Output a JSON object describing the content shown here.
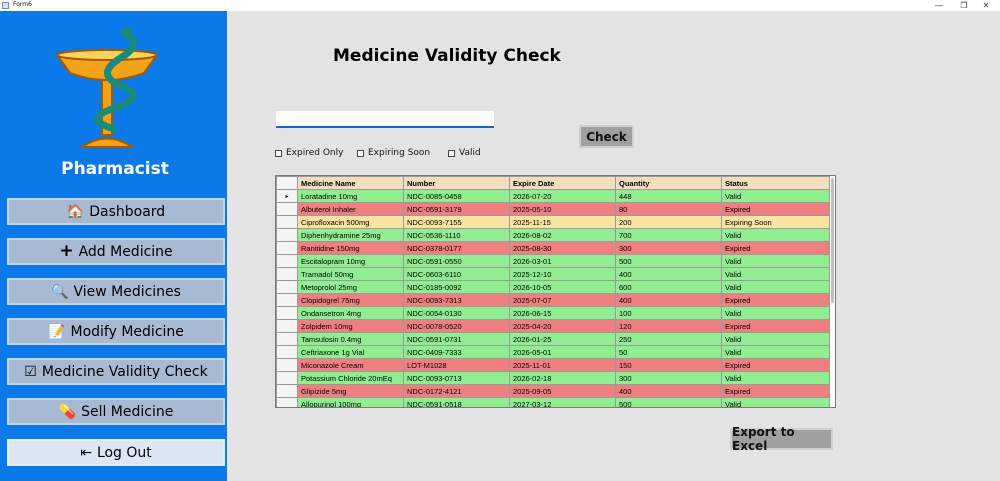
{
  "window": {
    "title": "Form6"
  },
  "sidebar": {
    "brand": "Pharmacist",
    "items": [
      {
        "label": "Dashboard",
        "icon": "home-icon",
        "glyph": "🏠"
      },
      {
        "label": "Add Medicine",
        "icon": "plus-icon",
        "glyph": "+"
      },
      {
        "label": "View Medicines",
        "icon": "magnifier-document-icon",
        "glyph": "🔍"
      },
      {
        "label": "Modify Medicine",
        "icon": "edit-pencil-icon",
        "glyph": "📝"
      },
      {
        "label": "Medicine Validity Check",
        "icon": "checkbox-icon",
        "glyph": "☑"
      },
      {
        "label": "Sell Medicine",
        "icon": "medicine-icon",
        "glyph": "💊"
      },
      {
        "label": "Log Out",
        "icon": "logout-icon",
        "glyph": "⇤"
      }
    ]
  },
  "main": {
    "title": "Medicine Validity Check",
    "search": {
      "value": "",
      "placeholder": ""
    },
    "check_label": "Check",
    "filters": [
      {
        "label": "Expired Only",
        "checked": false
      },
      {
        "label": "Expiring Soon",
        "checked": false
      },
      {
        "label": "Valid",
        "checked": false
      }
    ],
    "table": {
      "columns": [
        "Medicine Name",
        "Number",
        "Expire Date",
        "Quantity",
        "Status"
      ],
      "rows": [
        [
          "Loratadine 10mg",
          "NDC-0085-0458",
          "2026-07-20",
          "448",
          "Valid"
        ],
        [
          "Albuterol Inhaler",
          "NDC-0591-3179",
          "2025-05-10",
          "80",
          "Expired"
        ],
        [
          "Ciprofloxacin 500mg",
          "NDC-0093-7155",
          "2025-11-15",
          "200",
          "Expiring Soon"
        ],
        [
          "Diphenhydramine 25mg",
          "NDC-0536-1110",
          "2026-08-02",
          "700",
          "Valid"
        ],
        [
          "Ranitidine 150mg",
          "NDC-0378-0177",
          "2025-08-30",
          "300",
          "Expired"
        ],
        [
          "Escitalopram 10mg",
          "NDC-0591-0550",
          "2026-03-01",
          "500",
          "Valid"
        ],
        [
          "Tramadol 50mg",
          "NDC-0603-6110",
          "2025-12-10",
          "400",
          "Valid"
        ],
        [
          "Metoprolol 25mg",
          "NDC-0185-0092",
          "2026-10-05",
          "600",
          "Valid"
        ],
        [
          "Clopidogrel 75mg",
          "NDC-0093-7313",
          "2025-07-07",
          "400",
          "Expired"
        ],
        [
          "Ondansetron 4mg",
          "NDC-0054-0130",
          "2026-06-15",
          "100",
          "Valid"
        ],
        [
          "Zolpidem 10mg",
          "NDC-0078-0520",
          "2025-04-20",
          "120",
          "Expired"
        ],
        [
          "Tamsulosin 0.4mg",
          "NDC-0591-0731",
          "2026-01-25",
          "250",
          "Valid"
        ],
        [
          "Ceftriaxone 1g Vial",
          "NDC-0409-7333",
          "2026-05-01",
          "50",
          "Valid"
        ],
        [
          "Miconazole Cream",
          "LOT-M1028",
          "2025-11-01",
          "150",
          "Expired"
        ],
        [
          "Potassium Chloride 20mEq",
          "NDC-0093-0713",
          "2026-02-18",
          "300",
          "Valid"
        ],
        [
          "Glipizide 5mg",
          "NDC-0172-4121",
          "2025-09-05",
          "400",
          "Expired"
        ],
        [
          "Allopurinol 100mg",
          "NDC-0591-0518",
          "2027-03-12",
          "500",
          "Valid"
        ]
      ]
    },
    "export_label": "Export to Excel"
  },
  "colors": {
    "sidebar": "#0b79e8",
    "valid": "#90ee90",
    "expired": "#f08080",
    "expiring_soon": "#fbe3a3"
  }
}
